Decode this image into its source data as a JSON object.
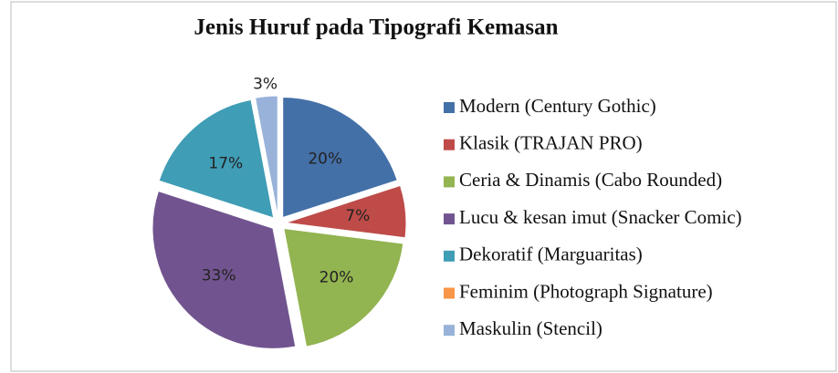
{
  "chart_data": {
    "type": "pie",
    "title": "Jenis Huruf pada Tipografi Kemasan",
    "categories": [
      "Modern (Century Gothic)",
      "Klasik (TRAJAN PRO)",
      "Ceria & Dinamis (Cabo Rounded)",
      "Lucu & kesan imut (Snacker Comic)",
      "Dekoratif (Marguaritas)",
      "Feminim (Photograph Signature)",
      "Maskulin (Stencil)"
    ],
    "values": [
      20,
      7,
      20,
      33,
      17,
      0,
      3
    ],
    "value_labels": [
      "20%",
      "7%",
      "20%",
      "33%",
      "17%",
      null,
      "3%"
    ],
    "colors": [
      "#4470a8",
      "#be4b48",
      "#92b451",
      "#71548f",
      "#3f9db5",
      "#f79646",
      "#98b2d9"
    ],
    "legend": "right"
  }
}
